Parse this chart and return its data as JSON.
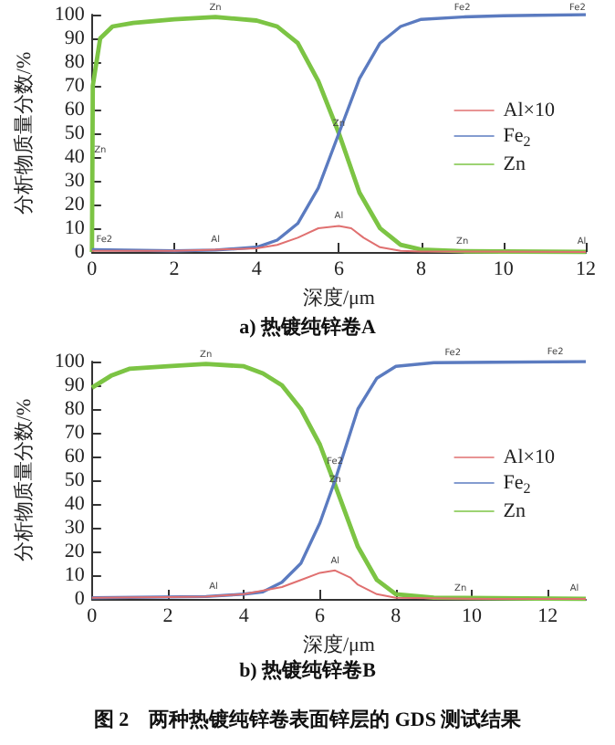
{
  "chart_data": [
    {
      "type": "line",
      "title": "a) 热镀纯锌卷A",
      "xlabel": "深度/μm",
      "ylabel": "分析物质量分数/%",
      "xlim": [
        0,
        12
      ],
      "xticks": [
        0,
        2,
        4,
        6,
        8,
        10,
        12
      ],
      "ylim": [
        0,
        100
      ],
      "yticks": [
        0,
        10,
        20,
        30,
        40,
        50,
        60,
        70,
        80,
        90,
        100
      ],
      "grid": false,
      "legend": "right",
      "marker": "none",
      "line_style": "solid",
      "series": [
        {
          "name": "Al×10",
          "color": "#e07070",
          "x": [
            0,
            2,
            3,
            4,
            4.5,
            5,
            5.5,
            6,
            6.3,
            6.6,
            7,
            7.5,
            8,
            12
          ],
          "values": [
            0.5,
            0.5,
            1,
            1.5,
            3,
            6,
            10,
            11,
            10,
            6,
            2,
            0.5,
            0.2,
            0
          ]
        },
        {
          "name": "Fe$_{2}$",
          "color": "#5b7bc0",
          "x": [
            0,
            2,
            3,
            4,
            4.5,
            5,
            5.5,
            6,
            6.5,
            7,
            7.5,
            8,
            9,
            10,
            12
          ],
          "values": [
            1,
            0.5,
            0.8,
            2,
            5,
            12,
            27,
            50,
            73,
            88,
            95,
            98,
            99,
            99.5,
            100
          ]
        },
        {
          "name": "Zn",
          "color": "#7cc444",
          "x": [
            0,
            0.02,
            0.2,
            0.5,
            1,
            2,
            3,
            4,
            4.5,
            5,
            5.5,
            6,
            6.5,
            7,
            7.5,
            8,
            9,
            12
          ],
          "values": [
            0,
            70,
            90,
            95,
            96.5,
            98,
            99,
            97.5,
            95,
            88,
            72,
            50,
            25,
            10,
            3,
            1,
            0.3,
            0
          ]
        }
      ],
      "annotations": [
        {
          "text": "Fe2",
          "x": 0.3,
          "y": 1
        },
        {
          "text": "Al",
          "x": 3,
          "y": 1
        },
        {
          "text": "Zn",
          "x": 3,
          "y": 99
        },
        {
          "text": "Zn",
          "x": 0.2,
          "y": 39
        },
        {
          "text": "Zn",
          "x": 6,
          "y": 50
        },
        {
          "text": "Al",
          "x": 6,
          "y": 11
        },
        {
          "text": "Fe2",
          "x": 9,
          "y": 99
        },
        {
          "text": "Fe2",
          "x": 11.8,
          "y": 99
        },
        {
          "text": "Zn",
          "x": 9,
          "y": 0.5
        },
        {
          "text": "Al",
          "x": 11.9,
          "y": 0.3
        }
      ]
    },
    {
      "type": "line",
      "title": "b) 热镀纯锌卷B",
      "xlabel": "深度/μm",
      "ylabel": "分析物质量分数/%",
      "xlim": [
        0,
        13
      ],
      "xticks": [
        0,
        2,
        4,
        6,
        8,
        10,
        12
      ],
      "ylim": [
        0,
        100
      ],
      "yticks": [
        0,
        10,
        20,
        30,
        40,
        50,
        60,
        70,
        80,
        90,
        100
      ],
      "grid": false,
      "legend": "right",
      "marker": "none",
      "line_style": "solid",
      "series": [
        {
          "name": "Al×10",
          "color": "#e07070",
          "x": [
            0,
            2,
            3,
            4,
            5,
            5.5,
            6,
            6.4,
            6.8,
            7,
            7.5,
            8,
            9,
            10.5,
            13
          ],
          "values": [
            0.5,
            0.8,
            1,
            2,
            5,
            8,
            11,
            12,
            9,
            6,
            2,
            0.5,
            0.3,
            0,
            0
          ]
        },
        {
          "name": "Fe$_{2}$",
          "color": "#5b7bc0",
          "x": [
            0,
            3,
            4,
            4.5,
            5,
            5.5,
            6,
            6.4,
            7,
            7.5,
            8,
            9,
            13
          ],
          "values": [
            0.5,
            1,
            2,
            3,
            7,
            15,
            32,
            50,
            80,
            93,
            98,
            99.5,
            100
          ]
        },
        {
          "name": "Zn",
          "color": "#7cc444",
          "x": [
            0,
            0.5,
            1,
            2,
            3,
            4,
            4.5,
            5,
            5.5,
            6,
            6.4,
            7,
            7.5,
            8,
            9,
            13
          ],
          "values": [
            89,
            94,
            97,
            98,
            99,
            98,
            95,
            90,
            80,
            65,
            48,
            22,
            8,
            2,
            0.5,
            0
          ]
        }
      ],
      "annotations": [
        {
          "text": "Zn",
          "x": 3,
          "y": 99
        },
        {
          "text": "Fe2",
          "x": 9.5,
          "y": 99.5
        },
        {
          "text": "Fe2",
          "x": 12.2,
          "y": 100
        },
        {
          "text": "Fe2",
          "x": 6.4,
          "y": 54
        },
        {
          "text": "Zn",
          "x": 6.4,
          "y": 46
        },
        {
          "text": "Al",
          "x": 6.4,
          "y": 12
        },
        {
          "text": "Al",
          "x": 3.2,
          "y": 1
        },
        {
          "text": "Zn",
          "x": 9.7,
          "y": 0.5
        },
        {
          "text": "Al",
          "x": 12.7,
          "y": 0.3
        },
        "图 2　两种热镀纯锌卷表面锌层的 GDS 测试结果"
      ]
    }
  ]
}
